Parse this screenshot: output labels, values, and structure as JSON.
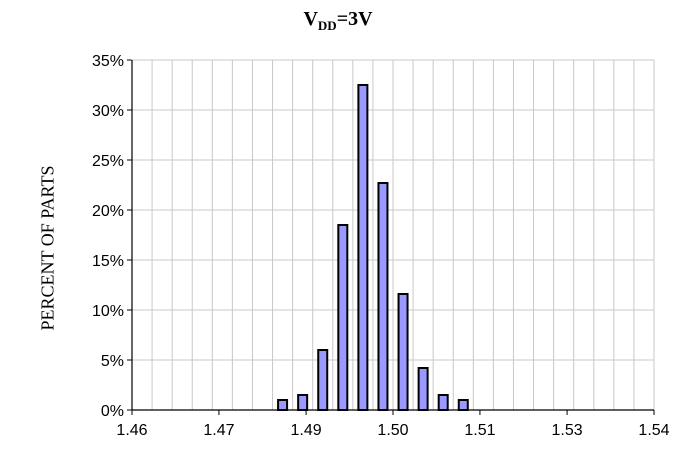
{
  "chart_data": {
    "type": "bar",
    "title": {
      "main": "V",
      "subscript": "DD",
      "suffix": "=3V"
    },
    "ylabel": "PERCENT OF PARTS",
    "xlabel": "",
    "x_ticks": [
      "1.46",
      "1.47",
      "1.49",
      "1.50",
      "1.50",
      "1.50",
      "1.51",
      "1.53",
      "1.54"
    ],
    "x_tick_labels_shown": [
      "1.46",
      "1.47",
      "1.49",
      "1.50",
      "1.51",
      "1.53",
      "1.54"
    ],
    "y_ticks": [
      "0%",
      "5%",
      "10%",
      "15%",
      "20%",
      "25%",
      "30%",
      "35%"
    ],
    "ylim": [
      0,
      35
    ],
    "x_bin_count": 26,
    "bins": [
      {
        "index": 7,
        "value": 1.0
      },
      {
        "index": 8,
        "value": 1.5
      },
      {
        "index": 9,
        "value": 6.0
      },
      {
        "index": 10,
        "value": 18.5
      },
      {
        "index": 11,
        "value": 32.5
      },
      {
        "index": 12,
        "value": 22.7
      },
      {
        "index": 13,
        "value": 11.6
      },
      {
        "index": 14,
        "value": 4.2
      },
      {
        "index": 15,
        "value": 1.5
      },
      {
        "index": 16,
        "value": 1.0
      }
    ],
    "bar_color": "#9999ff",
    "grid": true
  }
}
